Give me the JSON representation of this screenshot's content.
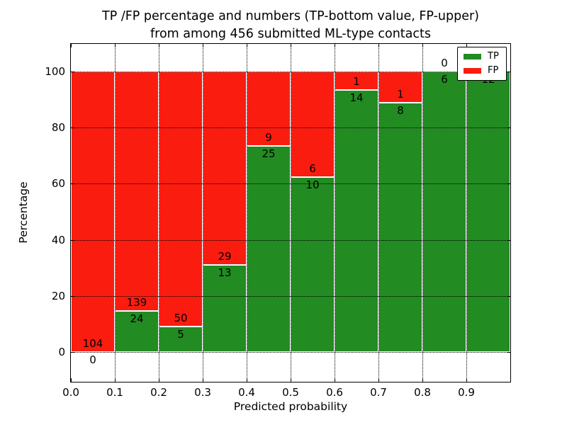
{
  "title": {
    "line1": "TP /FP percentage and numbers (TP-bottom value, FP-upper)",
    "line2": "from among 456 submitted ML-type contacts"
  },
  "chart_data": {
    "type": "bar",
    "stacked": true,
    "normalized_to_percent": true,
    "title": "TP /FP percentage and numbers (TP-bottom value, FP-upper)\nfrom among 456 submitted ML-type contacts",
    "title_line1": "TP /FP percentage and numbers (TP-bottom value, FP-upper)",
    "title_line2": "from among 456 submitted ML-type contacts",
    "xlabel": "Predicted probability",
    "ylabel": "Percentage",
    "total_contacts": 456,
    "bin_width": 0.1,
    "bin_starts": [
      0.0,
      0.1,
      0.2,
      0.3,
      0.4,
      0.5,
      0.6,
      0.7,
      0.8,
      0.9
    ],
    "series": [
      {
        "name": "TP",
        "color": "#228b22",
        "counts": [
          0,
          24,
          5,
          13,
          25,
          10,
          14,
          8,
          6,
          12
        ]
      },
      {
        "name": "FP",
        "color": "#fb1c10",
        "counts": [
          104,
          139,
          50,
          29,
          9,
          6,
          1,
          1,
          0,
          0
        ]
      }
    ],
    "tp_percent": [
      0.0,
      14.7,
      9.1,
      31.0,
      73.5,
      62.5,
      93.3,
      88.9,
      100.0,
      100.0
    ],
    "xticks": [
      "0.0",
      "0.1",
      "0.2",
      "0.3",
      "0.4",
      "0.5",
      "0.6",
      "0.7",
      "0.8",
      "0.9"
    ],
    "yticks": [
      "0",
      "20",
      "40",
      "60",
      "80",
      "100"
    ],
    "xlim": [
      0.0,
      1.0
    ],
    "ylim": [
      -10,
      110
    ],
    "grid": "dotted",
    "colors": {
      "tp": "#228b22",
      "fp": "#fb1c10",
      "grid": "#000000",
      "background": "#ffffff",
      "text": "#000000"
    },
    "legend": {
      "position": "upper right",
      "entries": [
        {
          "label": "TP",
          "color": "#228b22"
        },
        {
          "label": "FP",
          "color": "#fb1c10"
        }
      ]
    }
  }
}
